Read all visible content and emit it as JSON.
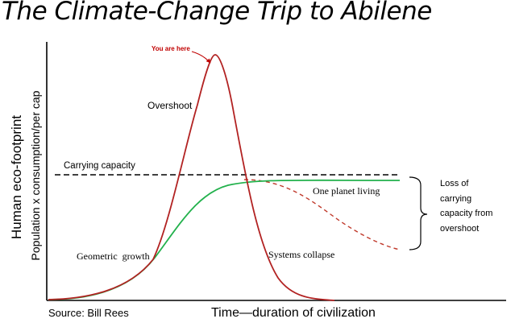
{
  "title": "The Climate-Change Trip to Abilene",
  "annotations": {
    "you_are_here": "You are here",
    "overshoot": "Overshoot",
    "carrying_capacity": "Carrying capacity",
    "one_planet_living": "One planet living",
    "geometric_growth": "Geometric  growth",
    "systems_collapse": "Systems collapse",
    "loss_of_carrying_capacity": "Loss of carrying capacity from overshoot"
  },
  "axes": {
    "ylabel": "Human eco-footprint",
    "ylabel_secondary": "Population x consumption/per cap",
    "xlabel": "Time—duration of civilization"
  },
  "source": "Source: Bill Rees",
  "colors": {
    "overshoot_curve": "#b22222",
    "one_planet_curve": "#22b14c",
    "carrying_capacity_line": "#000000",
    "declining_capacity": "#c0392b",
    "you_are_here": "#c00000"
  }
}
